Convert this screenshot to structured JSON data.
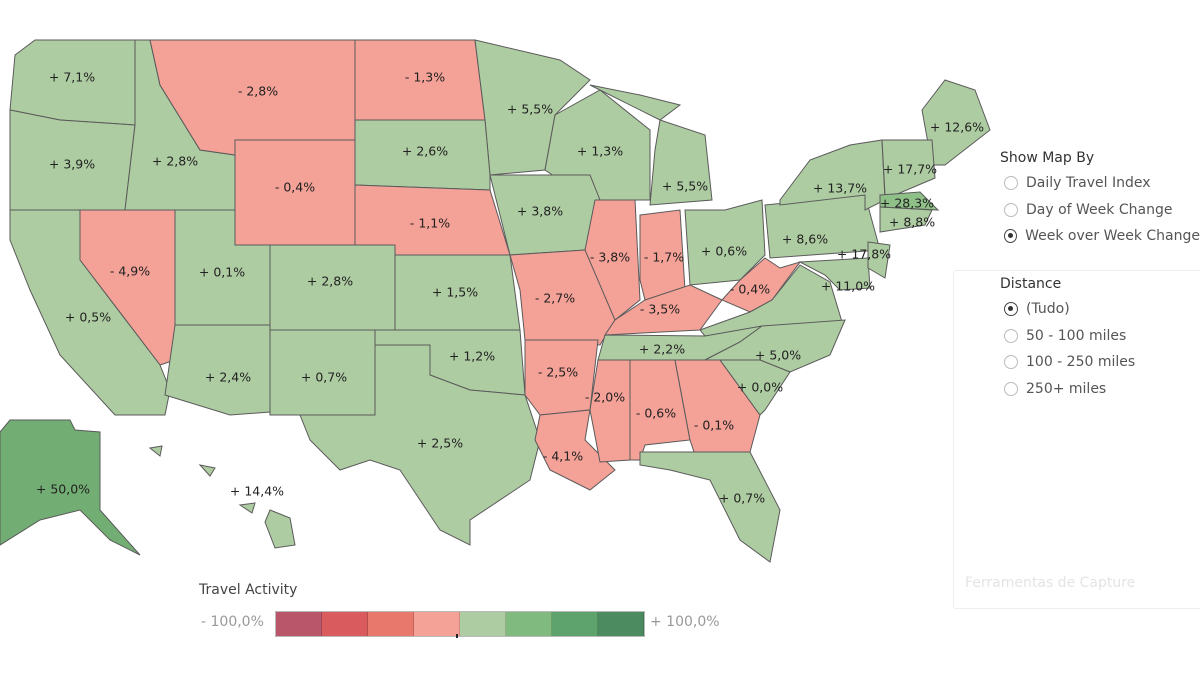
{
  "map": {
    "colors": {
      "positive": "#aecca2",
      "negative": "#f4a197",
      "strong_positive": "#72ad73",
      "mid_positive": "#8ec088",
      "border": "#5a5a5a"
    },
    "states": {
      "WA": {
        "label": "+ 7,1%",
        "tone": "positive"
      },
      "OR": {
        "label": "+ 3,9%",
        "tone": "positive"
      },
      "ID": {
        "label": "+ 2,8%",
        "tone": "positive"
      },
      "MT": {
        "label": "- 2,8%",
        "tone": "negative"
      },
      "ND": {
        "label": "- 1,3%",
        "tone": "negative"
      },
      "MN": {
        "label": "+ 5,5%",
        "tone": "positive"
      },
      "WI": {
        "label": "+ 1,3%",
        "tone": "positive"
      },
      "MI": {
        "label": "+ 5,5%",
        "tone": "positive"
      },
      "SD": {
        "label": "+ 2,6%",
        "tone": "positive"
      },
      "WY": {
        "label": "- 0,4%",
        "tone": "negative"
      },
      "NE": {
        "label": "- 1,1%",
        "tone": "negative"
      },
      "IA": {
        "label": "+ 3,8%",
        "tone": "positive"
      },
      "IL": {
        "label": "- 3,8%",
        "tone": "negative"
      },
      "IN": {
        "label": "- 1,7%",
        "tone": "negative"
      },
      "OH": {
        "label": "+ 0,6%",
        "tone": "positive"
      },
      "PA": {
        "label": "+ 8,6%",
        "tone": "positive"
      },
      "NY": {
        "label": "+ 13,7%",
        "tone": "positive"
      },
      "NV": {
        "label": "- 4,9%",
        "tone": "negative"
      },
      "CA": {
        "label": "+ 0,5%",
        "tone": "positive"
      },
      "UT": {
        "label": "+ 0,1%",
        "tone": "positive"
      },
      "CO": {
        "label": "+ 2,8%",
        "tone": "positive"
      },
      "KS": {
        "label": "+ 1,5%",
        "tone": "positive"
      },
      "MO": {
        "label": "- 2,7%",
        "tone": "negative"
      },
      "KY": {
        "label": "- 3,5%",
        "tone": "negative"
      },
      "WV": {
        "label": "- 0,4%",
        "tone": "negative"
      },
      "VA": {
        "label": "",
        "tone": "positive"
      },
      "AZ": {
        "label": "+ 2,4%",
        "tone": "positive"
      },
      "NM": {
        "label": "+ 0,7%",
        "tone": "positive"
      },
      "OK": {
        "label": "+ 1,2%",
        "tone": "positive"
      },
      "TX": {
        "label": "+ 2,5%",
        "tone": "positive"
      },
      "AR": {
        "label": "- 2,5%",
        "tone": "negative"
      },
      "LA": {
        "label": "- 4,1%",
        "tone": "negative"
      },
      "MS": {
        "label": "- 2,0%",
        "tone": "negative"
      },
      "AL": {
        "label": "- 0,6%",
        "tone": "negative"
      },
      "GA": {
        "label": "- 0,1%",
        "tone": "negative"
      },
      "FL": {
        "label": "+ 0,7%",
        "tone": "positive"
      },
      "TN": {
        "label": "+ 2,2%",
        "tone": "positive"
      },
      "NC": {
        "label": "+ 5,0%",
        "tone": "positive"
      },
      "SC": {
        "label": "+ 0,0%",
        "tone": "positive"
      },
      "ME": {
        "label": "+ 12,6%",
        "tone": "positive"
      },
      "NH": {
        "label": "+ 17,7%",
        "tone": "positive"
      },
      "MA": {
        "label": "+ 28,3%",
        "tone": "mid_positive"
      },
      "CT": {
        "label": "+ 8,8%",
        "tone": "positive"
      },
      "NJ": {
        "label": "+ 17,8%",
        "tone": "positive"
      },
      "MD": {
        "label": "+ 11,0%",
        "tone": "positive"
      },
      "AK": {
        "label": "+ 50,0%",
        "tone": "strong_positive"
      },
      "HI": {
        "label": "+ 14,4%",
        "tone": "positive"
      }
    }
  },
  "show_map_by": {
    "title": "Show Map By",
    "options": [
      {
        "label": "Daily Travel Index",
        "selected": false
      },
      {
        "label": "Day of Week Change",
        "selected": false
      },
      {
        "label": "Week over Week Change",
        "selected": true
      }
    ]
  },
  "distance": {
    "title": "Distance",
    "options": [
      {
        "label": "(Tudo)",
        "selected": true
      },
      {
        "label": " 50 - 100 miles",
        "selected": false
      },
      {
        "label": "100 - 250 miles",
        "selected": false
      },
      {
        "label": "250+ miles",
        "selected": false
      }
    ]
  },
  "watermark": "Ferramentas de Capture",
  "legend": {
    "title": "Travel Activity",
    "min_label": "- 100,0%",
    "max_label": "+ 100,0%",
    "colors": [
      "#b9566a",
      "#d95b5e",
      "#e8776c",
      "#f4a197",
      "#aecca2",
      "#80ba7f",
      "#5ea26d",
      "#4c8b60"
    ]
  }
}
